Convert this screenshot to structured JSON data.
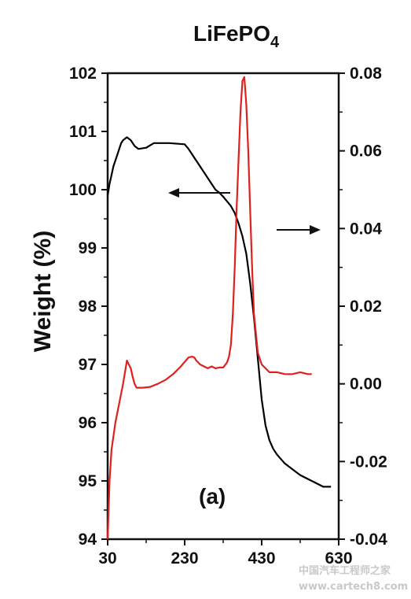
{
  "chart_data": {
    "type": "line",
    "title_main": "LiFePO",
    "title_sub": "4",
    "ylabel": "Weight (%)",
    "y2label": "",
    "xlabel": "",
    "panel_label": "(a)",
    "xlim": [
      30,
      630
    ],
    "ylim": [
      94,
      102
    ],
    "y2lim": [
      -0.04,
      0.08
    ],
    "x_ticks": [
      "30",
      "230",
      "430",
      "630"
    ],
    "y_ticks": [
      "94",
      "95",
      "96",
      "97",
      "98",
      "99",
      "100",
      "101",
      "102"
    ],
    "y2_ticks": [
      "-0.04",
      "-0.02",
      "0.00",
      "0.02",
      "0.04",
      "0.06",
      "0.08"
    ],
    "grid": false,
    "series": [
      {
        "axis": "left",
        "color": "#000000",
        "x": [
          30,
          35,
          40,
          45,
          50,
          55,
          60,
          65,
          70,
          80,
          90,
          100,
          110,
          130,
          150,
          170,
          190,
          230,
          240,
          250,
          260,
          270,
          280,
          290,
          300,
          310,
          320,
          330,
          340,
          350,
          360,
          370,
          380,
          390,
          400,
          410,
          420,
          430,
          440,
          450,
          460,
          470,
          490,
          510,
          530,
          560,
          590,
          610
        ],
        "values": [
          99.9,
          100.1,
          100.25,
          100.4,
          100.5,
          100.6,
          100.7,
          100.8,
          100.85,
          100.9,
          100.85,
          100.75,
          100.7,
          100.72,
          100.8,
          100.8,
          100.8,
          100.78,
          100.7,
          100.6,
          100.5,
          100.4,
          100.3,
          100.2,
          100.1,
          100.0,
          99.95,
          99.88,
          99.8,
          99.72,
          99.6,
          99.42,
          99.2,
          98.9,
          98.4,
          97.8,
          97.1,
          96.4,
          95.95,
          95.7,
          95.55,
          95.45,
          95.3,
          95.2,
          95.1,
          95.0,
          94.9,
          94.9
        ]
      },
      {
        "axis": "right",
        "color": "#e0201c",
        "x": [
          30,
          35,
          40,
          50,
          60,
          70,
          80,
          85,
          90,
          95,
          100,
          105,
          110,
          120,
          140,
          160,
          180,
          200,
          220,
          240,
          250,
          255,
          260,
          265,
          270,
          280,
          290,
          300,
          310,
          320,
          330,
          340,
          345,
          350,
          355,
          360,
          365,
          370,
          375,
          380,
          385,
          390,
          395,
          400,
          405,
          410,
          420,
          430,
          440,
          450,
          460,
          470,
          490,
          510,
          530,
          550,
          560
        ],
        "values": [
          -0.04,
          -0.025,
          -0.017,
          -0.01,
          -0.005,
          0.0,
          0.006,
          0.005,
          0.004,
          0.0018,
          0.0,
          -0.001,
          -0.001,
          -0.001,
          -0.0008,
          0.0,
          0.001,
          0.0025,
          0.0045,
          0.0068,
          0.007,
          0.0068,
          0.006,
          0.0055,
          0.005,
          0.0045,
          0.004,
          0.0045,
          0.004,
          0.0042,
          0.0042,
          0.0055,
          0.007,
          0.01,
          0.018,
          0.03,
          0.045,
          0.058,
          0.07,
          0.078,
          0.079,
          0.072,
          0.06,
          0.045,
          0.03,
          0.018,
          0.008,
          0.005,
          0.004,
          0.003,
          0.003,
          0.003,
          0.0025,
          0.0025,
          0.003,
          0.0025,
          0.0025
        ]
      }
    ],
    "arrows": [
      {
        "direction": "left",
        "series": "Weight (%)"
      },
      {
        "direction": "right",
        "series": "right axis"
      }
    ]
  },
  "watermark": {
    "line1": "中国汽车工程师之家",
    "line2": "www.cartech8.com"
  }
}
